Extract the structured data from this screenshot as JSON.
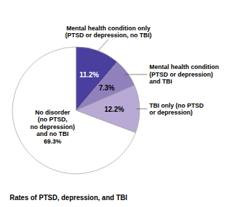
{
  "chart_data": {
    "type": "pie",
    "title": "Rates of PTSD, depression, and TBI",
    "categories": [
      "Mental health condition only\n(PTSD or depression, no TBI)",
      "Mental health condition\n(PTSD or depression)\nand TBI",
      "TBI only (no PTSD\nor depression)",
      "No disorder\n(no PTSD,\nno depression)\nand no TBI\n69.3%"
    ],
    "values": [
      11.2,
      7.3,
      12.2,
      69.3
    ],
    "colors": [
      "#4a3f9f",
      "#9080bb",
      "#b8aad4",
      "#ffffff"
    ],
    "data_labels": true,
    "value_labels": [
      "11.2%",
      "7.3%",
      "12.2%",
      null
    ]
  }
}
